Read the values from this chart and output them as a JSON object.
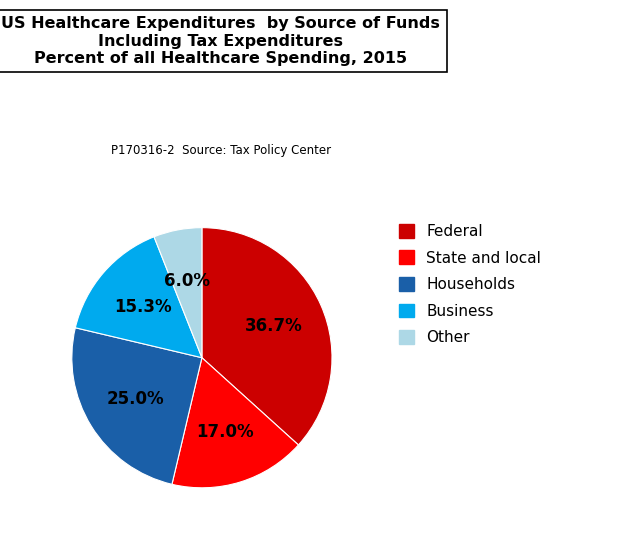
{
  "title_line1": "US Healthcare Expenditures  by Source of Funds",
  "title_line2": "Including Tax Expenditures",
  "title_line3": "Percent of all Healthcare Spending, 2015",
  "subtitle": "P170316-2  Source: Tax Policy Center",
  "categories": [
    "Federal",
    "State and local",
    "Households",
    "Business",
    "Other"
  ],
  "values": [
    36.7,
    17.0,
    25.0,
    15.3,
    6.0
  ],
  "colors": [
    "#cc0000",
    "#ff0000",
    "#1a5fa8",
    "#00aaee",
    "#add8e6"
  ],
  "startangle": 90,
  "background_color": "#ffffff",
  "legend_labels": [
    "Federal",
    "State and local",
    "Households",
    "Business",
    "Other"
  ],
  "legend_colors": [
    "#cc0000",
    "#ff0000",
    "#1a5fa8",
    "#00aaee",
    "#add8e6"
  ],
  "title_fontsize": 11.5,
  "subtitle_fontsize": 8.5,
  "label_fontsize": 12,
  "legend_fontsize": 11
}
